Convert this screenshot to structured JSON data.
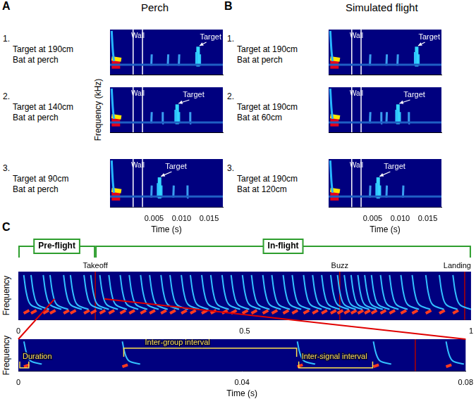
{
  "panels": [
    {
      "letter": "A",
      "title": "Perch"
    },
    {
      "letter": "B",
      "title": "Simulated flight"
    },
    {
      "letter": "C"
    }
  ],
  "chart_data": [
    {
      "panel": "A",
      "type": "spectrogram",
      "caption": [
        "1.",
        "Target at 190cm",
        "Bat at perch"
      ],
      "xlim": [
        -0.003,
        0.0175
      ],
      "ylim": [
        0,
        1
      ],
      "tick_labels": false,
      "call_time": -0.0027,
      "walls": [
        0.0012,
        0.0029
      ],
      "wall_label": "Wall",
      "target": {
        "time": 0.013,
        "label": "Target"
      },
      "echoes": [
        0.0045,
        0.0075,
        0.0095
      ]
    },
    {
      "panel": "A",
      "type": "spectrogram",
      "caption": [
        "2.",
        "Target at 140cm",
        "Bat at perch"
      ],
      "ylabel": "Frequency (kHz)",
      "xlim": [
        -0.003,
        0.0175
      ],
      "ylim": [
        0,
        1
      ],
      "tick_labels": false,
      "call_time": -0.0027,
      "walls": [
        0.0012,
        0.0029
      ],
      "wall_label": "Wall",
      "target": {
        "time": 0.0092,
        "label": "Target"
      },
      "echoes": [
        0.0045,
        0.0065,
        0.0115
      ]
    },
    {
      "panel": "A",
      "type": "spectrogram",
      "caption": [
        "3.",
        "Target at 90cm",
        "Bat at perch"
      ],
      "xlabel": "Time (s)",
      "xlim": [
        -0.003,
        0.0175
      ],
      "xticks": [
        0.005,
        {
          "value": 0.01,
          "label": "0.010"
        },
        0.015
      ],
      "ylim": [
        0,
        1
      ],
      "tick_labels": "x",
      "call_time": -0.0027,
      "walls": [
        0.0012,
        0.0029
      ],
      "wall_label": "Wall",
      "target": {
        "time": 0.006,
        "label": "Target"
      },
      "echoes": [
        0.0045,
        0.0085,
        0.011
      ]
    },
    {
      "panel": "B",
      "type": "spectrogram",
      "caption": [
        "1.",
        "Target at 190cm",
        "Bat at perch"
      ],
      "xlim": [
        -0.003,
        0.0175
      ],
      "ylim": [
        0,
        1
      ],
      "tick_labels": false,
      "call_time": -0.0027,
      "walls": [
        0.0012,
        0.0029
      ],
      "wall_label": "Wall",
      "target": {
        "time": 0.013,
        "label": "Target"
      },
      "echoes": [
        0.0045,
        0.0075,
        0.0095
      ]
    },
    {
      "panel": "B",
      "type": "spectrogram",
      "caption": [
        "2.",
        "Target at 190cm",
        "Bat at 60cm"
      ],
      "xlim": [
        -0.003,
        0.0175
      ],
      "ylim": [
        0,
        1
      ],
      "tick_labels": false,
      "call_time": -0.0027,
      "walls": [
        0.0012,
        0.0029
      ],
      "wall_label": "Wall",
      "target": {
        "time": 0.0096,
        "label": "Target"
      },
      "echoes": [
        0.0045,
        0.0065,
        0.0075,
        0.0115
      ]
    },
    {
      "panel": "B",
      "type": "spectrogram",
      "caption": [
        "3.",
        "Target at 190cm",
        "Bat at 120cm"
      ],
      "xlabel": "Time (s)",
      "xlim": [
        -0.003,
        0.0175
      ],
      "xticks": [
        0.005,
        {
          "value": 0.01,
          "label": "0.010"
        },
        0.015
      ],
      "ylim": [
        0,
        1
      ],
      "tick_labels": "x",
      "call_time": -0.0027,
      "walls": [
        0.0012,
        0.0029
      ],
      "wall_label": "Wall",
      "target": {
        "time": 0.006,
        "label": "Target"
      },
      "echoes": [
        0.0045,
        0.0075,
        0.0105
      ]
    },
    {
      "panel": "C",
      "type": "spectrogram",
      "ylabel": "Frequency",
      "xlim": [
        0,
        1
      ],
      "xticks": [
        0,
        0.5,
        1
      ],
      "ylim": [
        0,
        1
      ],
      "tick_labels": "x",
      "phases": [
        {
          "label": "Pre-flight",
          "range": [
            0,
            0.17
          ]
        },
        {
          "label": "In-flight",
          "range": [
            0.17,
            1
          ]
        }
      ],
      "events": [
        {
          "time": 0.17,
          "label": "Takeoff"
        },
        {
          "time": 0.71,
          "label": "Buzz"
        },
        {
          "time": 0.986,
          "label": "Landing"
        }
      ],
      "pulses": [
        0.012,
        0.028,
        0.055,
        0.07,
        0.1,
        0.115,
        0.145,
        0.16,
        0.18,
        0.2,
        0.225,
        0.245,
        0.27,
        0.29,
        0.315,
        0.335,
        0.36,
        0.38,
        0.405,
        0.425,
        0.45,
        0.47,
        0.495,
        0.515,
        0.54,
        0.56,
        0.585,
        0.605,
        0.63,
        0.65,
        0.67,
        0.69,
        0.705,
        0.72,
        0.735,
        0.75,
        0.765,
        0.78,
        0.8,
        0.82,
        0.845,
        0.87,
        0.9,
        0.93,
        0.96
      ],
      "zoom": [
        0.08,
        0.19
      ]
    },
    {
      "panel": "C",
      "type": "spectrogram",
      "ylabel": "Frequency",
      "xlabel": "Time (s)",
      "xlim": [
        0,
        0.08
      ],
      "xticks": [
        0,
        0.04,
        0.08
      ],
      "ylim": [
        0,
        1
      ],
      "tick_labels": "x",
      "pulses": [
        0.001,
        0.0186,
        0.0499,
        0.0635,
        0.0765
      ],
      "events": [
        {
          "time": 0.071
        }
      ],
      "intervals": [
        {
          "label": "Duration",
          "range": [
            0,
            0.002
          ]
        },
        {
          "label": "Inter-group interval",
          "range": [
            0.0186,
            0.0499
          ]
        },
        {
          "label": "Inter-signal interval",
          "range": [
            0.0499,
            0.0635
          ]
        }
      ]
    }
  ]
}
